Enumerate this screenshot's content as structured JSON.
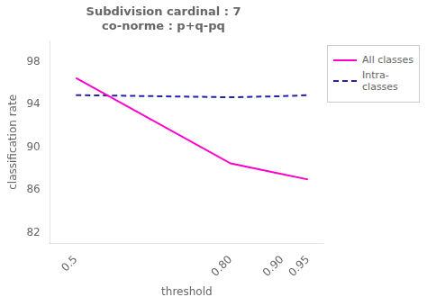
{
  "chart_data": {
    "type": "line",
    "title": "Subdivision cardinal : 7\nco-norme : p+q-pq",
    "x_label": "threshold",
    "y_label": "classification rate",
    "x": [
      0.5,
      0.8,
      0.9,
      0.95
    ],
    "series": [
      {
        "name": "All classes",
        "color": "#FF00CC",
        "line_style": "solid",
        "values": [
          96.5,
          88.5,
          87.5,
          87.0
        ]
      },
      {
        "name": "Intra-\nclasses",
        "color": "#2222AA",
        "line_style": "dashed",
        "values": [
          94.9,
          94.7,
          94.8,
          94.9
        ]
      }
    ],
    "xlim": [
      0.45,
      0.98
    ],
    "ylim": [
      81,
      100
    ],
    "xticks": [
      0.5,
      {
        "value": 0.8,
        "label": "0.80"
      },
      {
        "value": 0.9,
        "label": "0.90"
      },
      0.95
    ],
    "yticks": [
      82,
      86,
      90,
      94,
      98
    ],
    "grid": false,
    "legend": "right"
  }
}
